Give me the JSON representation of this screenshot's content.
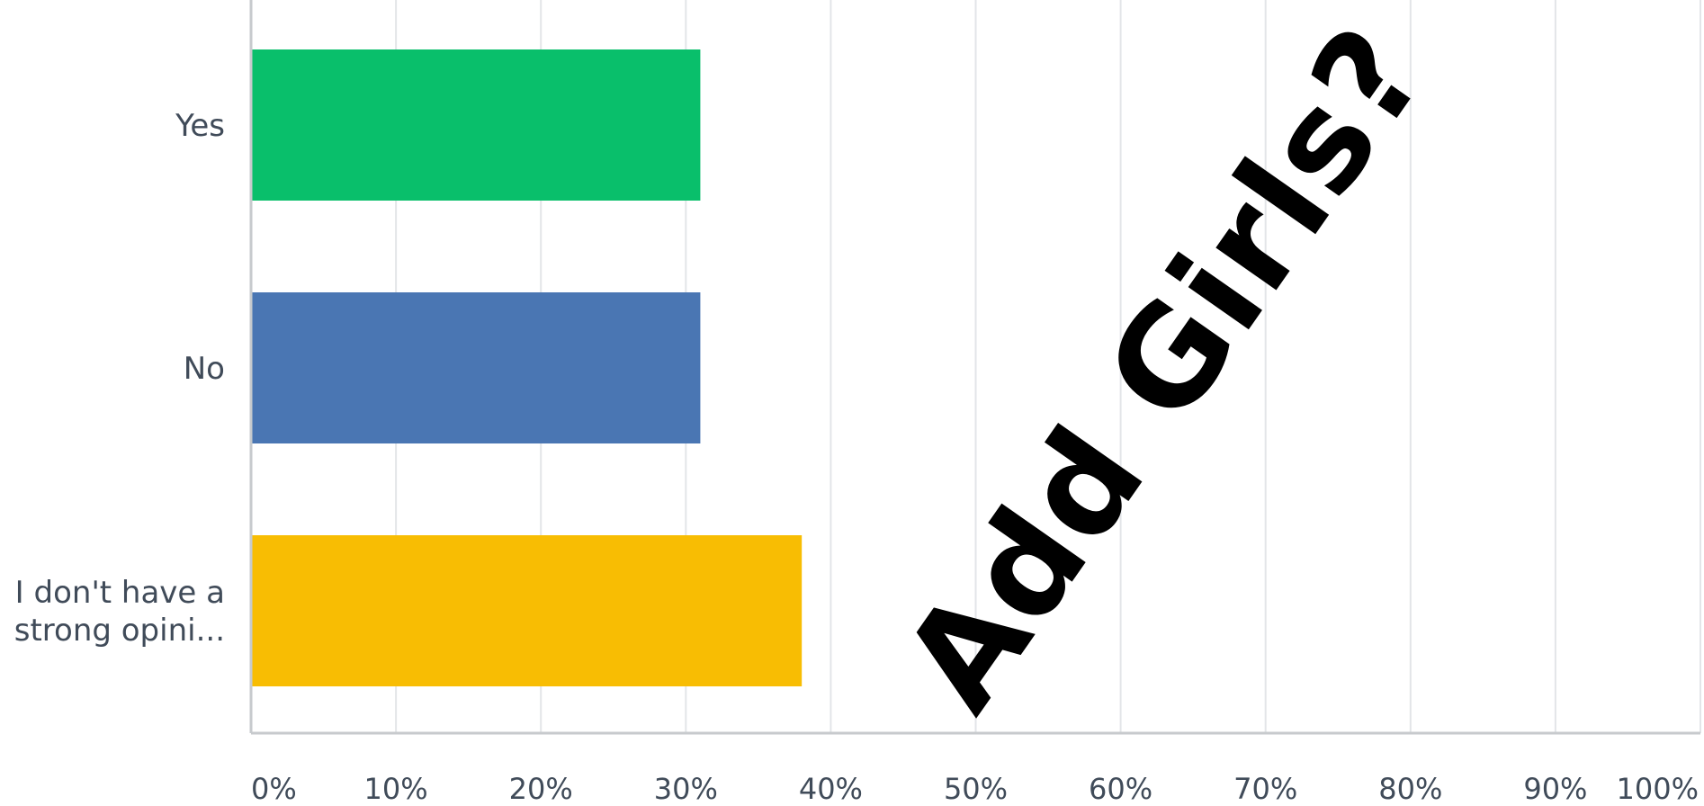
{
  "chart_data": {
    "type": "bar",
    "orientation": "horizontal",
    "categories": [
      [
        "Yes"
      ],
      [
        "No"
      ],
      [
        "I don't have a",
        "strong opini..."
      ]
    ],
    "values": [
      31,
      31,
      38
    ],
    "colors": [
      "#09bf6b",
      "#4a76b3",
      "#f8bd03"
    ],
    "xlim": [
      0,
      100
    ],
    "x_ticks": [
      0,
      10,
      20,
      30,
      40,
      50,
      60,
      70,
      80,
      90,
      100
    ],
    "x_tick_labels": [
      "0%",
      "10%",
      "20%",
      "30%",
      "40%",
      "50%",
      "60%",
      "70%",
      "80%",
      "90%",
      "100%"
    ],
    "grid": true,
    "title": "",
    "xlabel": "",
    "ylabel": ""
  },
  "overlay": {
    "text": "Add Girls?"
  },
  "style": {
    "grid_color": "#e3e5e8",
    "axis_color": "#c7cacd",
    "label_color": "#404b59"
  }
}
